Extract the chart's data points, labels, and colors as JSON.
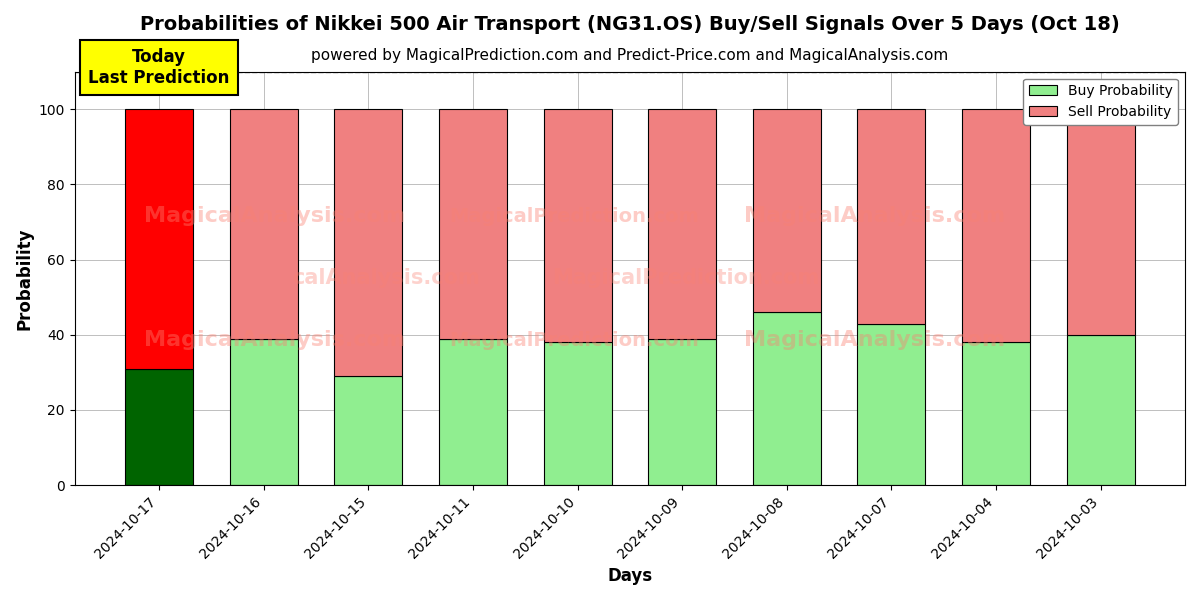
{
  "title": "Probabilities of Nikkei 500 Air Transport (NG31.OS) Buy/Sell Signals Over 5 Days (Oct 18)",
  "subtitle": "powered by MagicalPrediction.com and Predict-Price.com and MagicalAnalysis.com",
  "xlabel": "Days",
  "ylabel": "Probability",
  "categories": [
    "2024-10-17",
    "2024-10-16",
    "2024-10-15",
    "2024-10-11",
    "2024-10-10",
    "2024-10-09",
    "2024-10-08",
    "2024-10-07",
    "2024-10-04",
    "2024-10-03"
  ],
  "buy_values": [
    31,
    39,
    29,
    39,
    38,
    39,
    46,
    43,
    38,
    40
  ],
  "sell_values": [
    69,
    61,
    71,
    61,
    62,
    61,
    54,
    57,
    62,
    60
  ],
  "buy_colors_special": [
    "#006400",
    "#90EE90",
    "#90EE90",
    "#90EE90",
    "#90EE90",
    "#90EE90",
    "#90EE90",
    "#90EE90",
    "#90EE90",
    "#90EE90"
  ],
  "sell_colors_special": [
    "#FF0000",
    "#F08080",
    "#F08080",
    "#F08080",
    "#F08080",
    "#F08080",
    "#F08080",
    "#F08080",
    "#F08080",
    "#F08080"
  ],
  "buy_legend_color": "#90EE90",
  "sell_legend_color": "#F08080",
  "ylim": [
    0,
    110
  ],
  "dashed_line_y": 110,
  "annotation_text": "Today\nLast Prediction",
  "annotation_color": "#FFFF00",
  "bar_edgecolor": "black",
  "bar_linewidth": 0.8,
  "grid_color": "gray",
  "background_color": "white",
  "title_fontsize": 14,
  "subtitle_fontsize": 11,
  "axis_label_fontsize": 12,
  "tick_fontsize": 10
}
